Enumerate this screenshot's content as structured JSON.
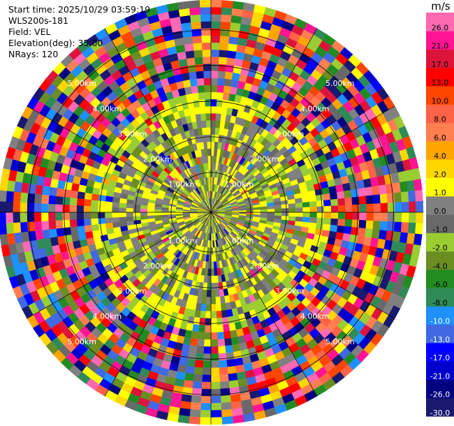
{
  "info": {
    "start_time": "Start time: 2025/10/29 03:59:19",
    "site": "WLS200s-181",
    "field": "Field: VEL",
    "elevation": "Elevation(deg): 35.00",
    "nrays": "NRays: 120"
  },
  "colorbar": {
    "unit": "m/s",
    "levels": [
      "-30.0",
      "-26.0",
      "-21.0",
      "-17.0",
      "-13.0",
      "-10.0",
      "-8.0",
      "-6.0",
      "-4.0",
      "-2.0",
      "-1.0",
      "0.0",
      "1.0",
      "2.0",
      "4.0",
      "6.0",
      "8.0",
      "10.0",
      "13.0",
      "17.0",
      "21.0",
      "26.0"
    ],
    "colors": [
      "#191970",
      "#000080",
      "#0000cd",
      "#0000ff",
      "#4169e1",
      "#1e90ff",
      "#2e8b57",
      "#228b22",
      "#6b8e23",
      "#9acd32",
      "#696969",
      "#808080",
      "#ffff00",
      "#ffd700",
      "#ffa500",
      "#ff7f50",
      "#ff6347",
      "#ff4500",
      "#ff0000",
      "#dc143c",
      "#ff1493",
      "#ff69b4"
    ]
  },
  "chart_data": {
    "type": "heatmap",
    "projection": "polar (PPI)",
    "field": "VEL",
    "unit": "m/s",
    "nrays": 120,
    "range_rings": [
      "1.00km",
      "2.00km",
      "3.00km",
      "4.00km",
      "5.00km"
    ],
    "vmin": -30.0,
    "vmax": 30.0,
    "pattern": "near-zero velocities (grey/green/yellow) within about 2.5 km; noisy full-range velocities beyond"
  }
}
